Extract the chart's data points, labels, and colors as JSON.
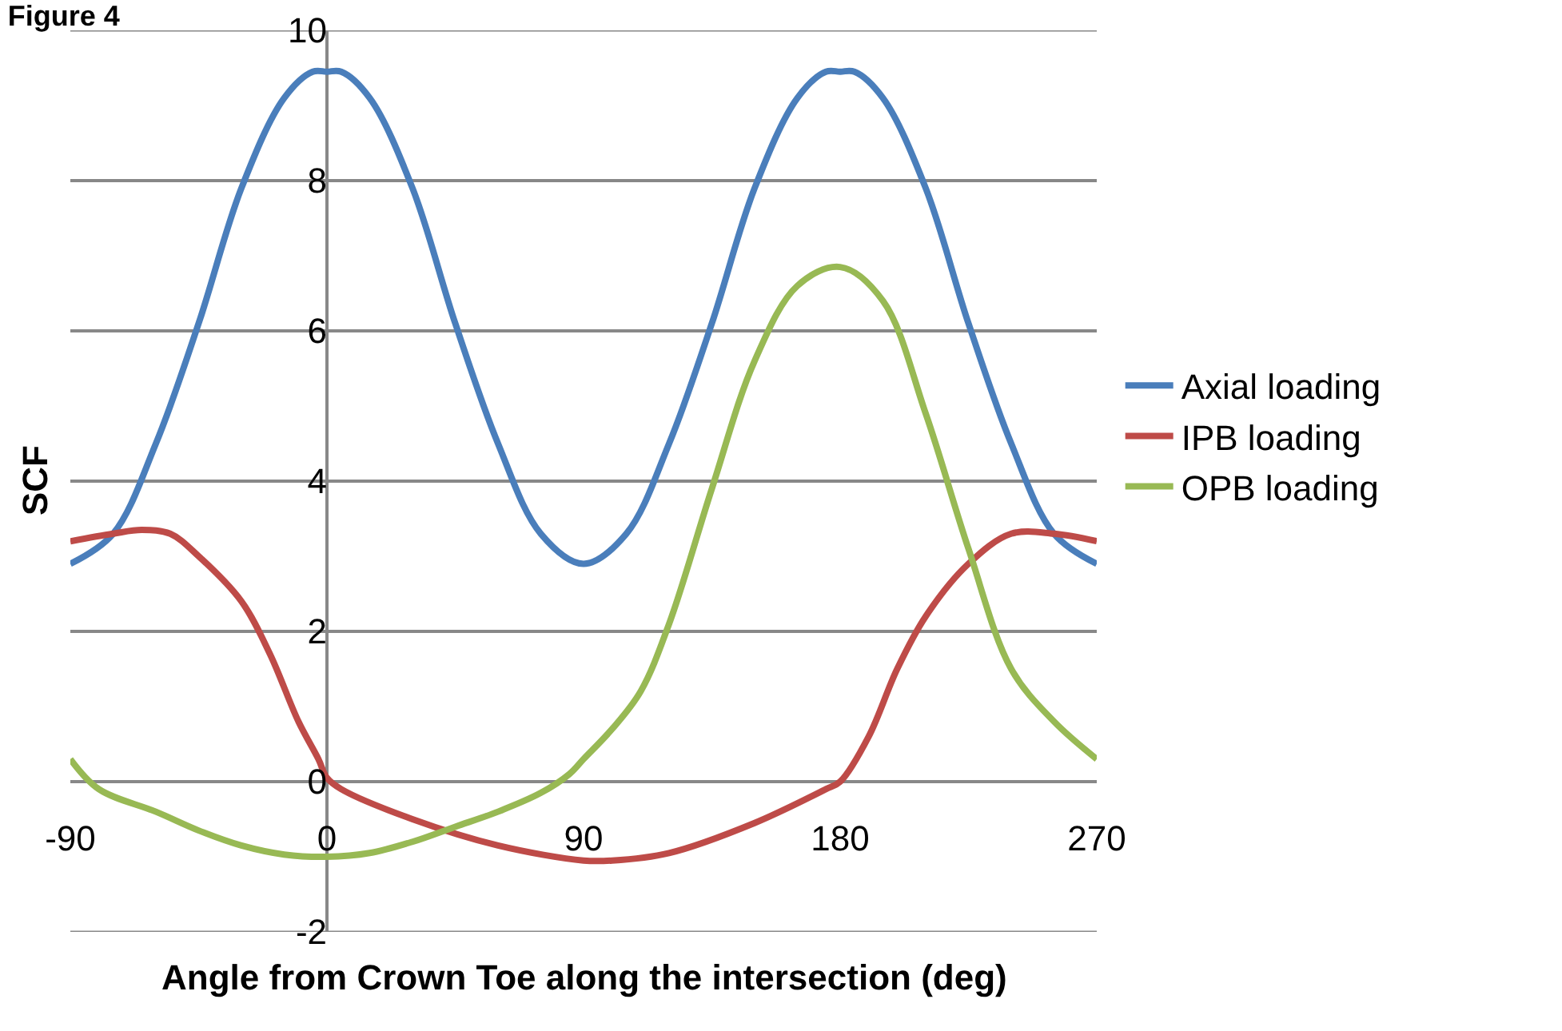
{
  "chart_data": {
    "type": "line",
    "title": "Figure 4",
    "xlabel": "Angle from Crown Toe along the intersection (deg)",
    "ylabel": "SCF",
    "xlim": [
      -90,
      270
    ],
    "xticks": [
      -90,
      0,
      90,
      180,
      270
    ],
    "ylim": [
      -2,
      10
    ],
    "yticks": [
      -2,
      0,
      2,
      4,
      6,
      8,
      10
    ],
    "grid": "y",
    "legend": "right",
    "marker": "none",
    "line_style": "solid",
    "series": [
      {
        "name": "Axial loading",
        "color": "#4a7ebb",
        "x": [
          -90,
          -75,
          -60,
          -45,
          -30,
          -15,
          -5,
          0,
          5,
          15,
          30,
          45,
          60,
          75,
          90,
          105,
          120,
          135,
          150,
          165,
          175,
          180,
          185,
          195,
          210,
          225,
          240,
          255,
          270
        ],
        "values": [
          2.9,
          3.3,
          4.5,
          6.1,
          7.9,
          9.1,
          9.45,
          9.45,
          9.45,
          9.1,
          7.9,
          6.1,
          4.5,
          3.3,
          2.9,
          3.3,
          4.5,
          6.1,
          7.9,
          9.1,
          9.45,
          9.45,
          9.45,
          9.1,
          7.9,
          6.1,
          4.5,
          3.3,
          2.9
        ]
      },
      {
        "name": "IPB loading",
        "color": "#be4b48",
        "x": [
          -90,
          -75,
          -65,
          -55,
          -45,
          -30,
          -20,
          -10,
          -3,
          0,
          5,
          30,
          60,
          90,
          100,
          120,
          150,
          175,
          180,
          190,
          200,
          210,
          225,
          240,
          255,
          270
        ],
        "values": [
          3.2,
          3.3,
          3.35,
          3.3,
          3.0,
          2.4,
          1.7,
          0.8,
          0.3,
          0.05,
          -0.1,
          -0.5,
          -0.85,
          -1.05,
          -1.05,
          -0.95,
          -0.55,
          -0.1,
          0.0,
          0.6,
          1.5,
          2.2,
          2.9,
          3.3,
          3.3,
          3.2
        ]
      },
      {
        "name": "OPB loading",
        "color": "#98b954",
        "x": [
          -90,
          -80,
          -60,
          -45,
          -30,
          -15,
          0,
          15,
          30,
          45,
          60,
          75,
          85,
          90,
          100,
          110,
          120,
          135,
          150,
          165,
          180,
          195,
          210,
          225,
          240,
          255,
          270
        ],
        "values": [
          0.3,
          -0.1,
          -0.4,
          -0.65,
          -0.85,
          -0.97,
          -1.0,
          -0.95,
          -0.8,
          -0.6,
          -0.4,
          -0.15,
          0.1,
          0.3,
          0.7,
          1.2,
          2.1,
          3.9,
          5.6,
          6.6,
          6.85,
          6.4,
          4.9,
          3.1,
          1.5,
          0.8,
          0.3
        ]
      }
    ]
  }
}
